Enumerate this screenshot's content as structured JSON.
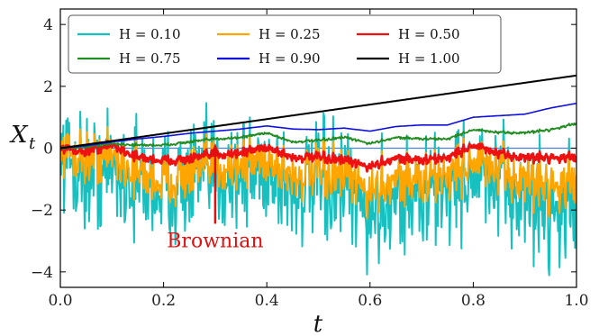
{
  "chart_data": {
    "type": "line",
    "title": "",
    "xlabel": "t",
    "ylabel": "X_t",
    "xlim": [
      0.0,
      1.0
    ],
    "ylim": [
      -4.5,
      4.5
    ],
    "xticks": [
      0.0,
      0.2,
      0.4,
      0.6,
      0.8,
      1.0
    ],
    "xtick_labels": [
      "0.0",
      "0.2",
      "0.4",
      "0.6",
      "0.8",
      "1.0"
    ],
    "yticks": [
      -4,
      -2,
      0,
      2,
      4
    ],
    "ytick_labels": [
      "−4",
      "−2",
      "0",
      "2",
      "4"
    ],
    "grid": false,
    "legend_position": "top",
    "zero_line_color": "#4f7fd8",
    "series": [
      {
        "name": "H = 0.10",
        "color": "#17bfbf",
        "roughness": 1.6,
        "width": 2.0,
        "x": [
          0.0,
          0.05,
          0.1,
          0.15,
          0.2,
          0.25,
          0.3,
          0.35,
          0.4,
          0.45,
          0.5,
          0.55,
          0.6,
          0.65,
          0.7,
          0.75,
          0.8,
          0.85,
          0.9,
          0.95,
          1.0
        ],
        "y": [
          -0.2,
          -0.8,
          -0.6,
          -1.1,
          -1.3,
          -1.0,
          -0.9,
          -0.8,
          -0.6,
          -1.4,
          -1.2,
          -1.3,
          -2.2,
          -1.4,
          -1.6,
          -1.2,
          -0.8,
          -1.3,
          -1.5,
          -1.9,
          -1.8
        ]
      },
      {
        "name": "H = 0.25",
        "color": "#ffa500",
        "roughness": 0.75,
        "width": 2.0,
        "x": [
          0.0,
          0.05,
          0.1,
          0.15,
          0.2,
          0.25,
          0.3,
          0.35,
          0.4,
          0.45,
          0.5,
          0.55,
          0.6,
          0.65,
          0.7,
          0.75,
          0.8,
          0.85,
          0.9,
          0.95,
          1.0
        ],
        "y": [
          -0.1,
          -0.3,
          -0.2,
          -0.8,
          -1.1,
          -0.8,
          -0.6,
          -0.5,
          -0.3,
          -0.9,
          -0.8,
          -0.9,
          -1.4,
          -0.9,
          -1.1,
          -0.8,
          -0.4,
          -0.8,
          -1.0,
          -1.2,
          -1.1
        ]
      },
      {
        "name": "H = 0.50",
        "color": "#ee1111",
        "roughness": 0.14,
        "width": 2.8,
        "x": [
          0.0,
          0.05,
          0.1,
          0.15,
          0.2,
          0.25,
          0.3,
          0.35,
          0.4,
          0.45,
          0.5,
          0.55,
          0.6,
          0.65,
          0.7,
          0.75,
          0.8,
          0.85,
          0.9,
          0.95,
          1.0
        ],
        "y": [
          0.0,
          -0.1,
          0.1,
          -0.3,
          -0.4,
          -0.35,
          -0.2,
          -0.15,
          0.05,
          -0.3,
          -0.3,
          -0.4,
          -0.6,
          -0.3,
          -0.4,
          -0.3,
          0.1,
          -0.2,
          -0.3,
          -0.3,
          -0.3
        ]
      },
      {
        "name": "H = 0.75",
        "color": "#228b22",
        "roughness": 0.04,
        "width": 1.8,
        "x": [
          0.0,
          0.05,
          0.1,
          0.15,
          0.2,
          0.25,
          0.3,
          0.35,
          0.4,
          0.45,
          0.5,
          0.55,
          0.6,
          0.65,
          0.7,
          0.75,
          0.8,
          0.85,
          0.9,
          0.95,
          1.0
        ],
        "y": [
          0.0,
          0.05,
          0.15,
          0.1,
          0.1,
          0.2,
          0.3,
          0.35,
          0.5,
          0.2,
          0.25,
          0.35,
          0.15,
          0.35,
          0.3,
          0.3,
          0.6,
          0.5,
          0.5,
          0.6,
          0.8
        ]
      },
      {
        "name": "H = 0.90",
        "color": "#1010dd",
        "roughness": 0.0,
        "width": 1.6,
        "x": [
          0.0,
          0.05,
          0.1,
          0.15,
          0.2,
          0.25,
          0.3,
          0.35,
          0.4,
          0.45,
          0.5,
          0.55,
          0.6,
          0.65,
          0.7,
          0.75,
          0.8,
          0.85,
          0.9,
          0.95,
          1.0
        ],
        "y": [
          0.0,
          0.08,
          0.2,
          0.3,
          0.38,
          0.48,
          0.55,
          0.62,
          0.72,
          0.62,
          0.6,
          0.65,
          0.55,
          0.7,
          0.75,
          0.75,
          1.0,
          1.05,
          1.1,
          1.3,
          1.45
        ]
      },
      {
        "name": "H = 1.00",
        "color": "#000000",
        "roughness": 0.0,
        "width": 2.0,
        "x": [
          0.0,
          1.0
        ],
        "y": [
          0.0,
          2.35
        ]
      }
    ],
    "annotations": [
      {
        "text": "Brownian",
        "color": "#e01010",
        "arrow_to": [
          0.3,
          0.15
        ],
        "text_at": [
          0.3,
          -3.2
        ]
      }
    ]
  }
}
